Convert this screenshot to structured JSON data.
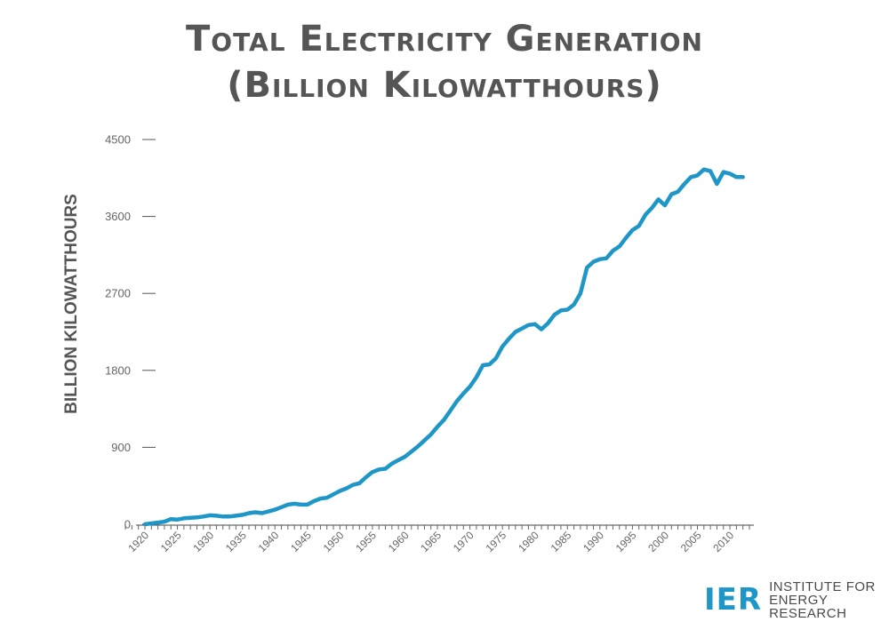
{
  "chart_data": {
    "type": "line",
    "title_line1": "Total Electricity Generation",
    "title_line2": "(Billion Kilowatthours)",
    "ylabel": "BILLION KILOWATTHOURS",
    "xlabel": "",
    "ylim": [
      0,
      4500
    ],
    "xlim": [
      1920,
      2013
    ],
    "y_ticks": [
      0,
      900,
      1800,
      2700,
      3600,
      4500
    ],
    "x_ticks": [
      1920,
      1925,
      1930,
      1935,
      1940,
      1945,
      1950,
      1955,
      1960,
      1965,
      1970,
      1975,
      1980,
      1985,
      1990,
      1995,
      2000,
      2005,
      2010
    ],
    "line_color": "#1e97c8",
    "series": [
      {
        "x": [
          1920,
          1921,
          1922,
          1923,
          1924,
          1925,
          1926,
          1927,
          1928,
          1929,
          1930,
          1931,
          1932,
          1933,
          1934,
          1935,
          1936,
          1937,
          1938,
          1939,
          1940,
          1941,
          1942,
          1943,
          1944,
          1945,
          1946,
          1947,
          1948,
          1949,
          1950,
          1951,
          1952,
          1953,
          1954,
          1955,
          1956,
          1957,
          1958,
          1959,
          1960,
          1961,
          1962,
          1963,
          1964,
          1965,
          1966,
          1967,
          1968,
          1969,
          1970,
          1971,
          1972,
          1973,
          1974,
          1975,
          1976,
          1977,
          1978,
          1979,
          1980,
          1981,
          1982,
          1983,
          1984,
          1985,
          1986,
          1987,
          1988,
          1989,
          1990,
          1991,
          1992,
          1993,
          1994,
          1995,
          1996,
          1997,
          1998,
          1999,
          2000,
          2001,
          2002,
          2003,
          2004,
          2005,
          2006,
          2007,
          2008,
          2009,
          2010,
          2011,
          2012
        ],
        "values": [
          0,
          10,
          20,
          30,
          60,
          55,
          70,
          75,
          80,
          90,
          105,
          100,
          90,
          90,
          100,
          110,
          130,
          140,
          130,
          150,
          170,
          200,
          230,
          240,
          230,
          230,
          270,
          300,
          310,
          350,
          390,
          420,
          460,
          480,
          550,
          610,
          640,
          650,
          710,
          750,
          790,
          850,
          910,
          980,
          1050,
          1140,
          1220,
          1330,
          1440,
          1530,
          1610,
          1720,
          1860,
          1870,
          1940,
          2080,
          2170,
          2250,
          2290,
          2330,
          2340,
          2280,
          2350,
          2450,
          2500,
          2510,
          2570,
          2700,
          3000,
          3070,
          3100,
          3110,
          3200,
          3250,
          3350,
          3440,
          3490,
          3620,
          3700,
          3800,
          3730,
          3860,
          3890,
          3980,
          4060,
          4080,
          4150,
          4130,
          3980,
          4120,
          4100,
          4060,
          4060
        ]
      }
    ]
  },
  "logo": {
    "mark": "IER",
    "line1": "INSTITUTE FOR",
    "line2": "ENERGY RESEARCH"
  }
}
